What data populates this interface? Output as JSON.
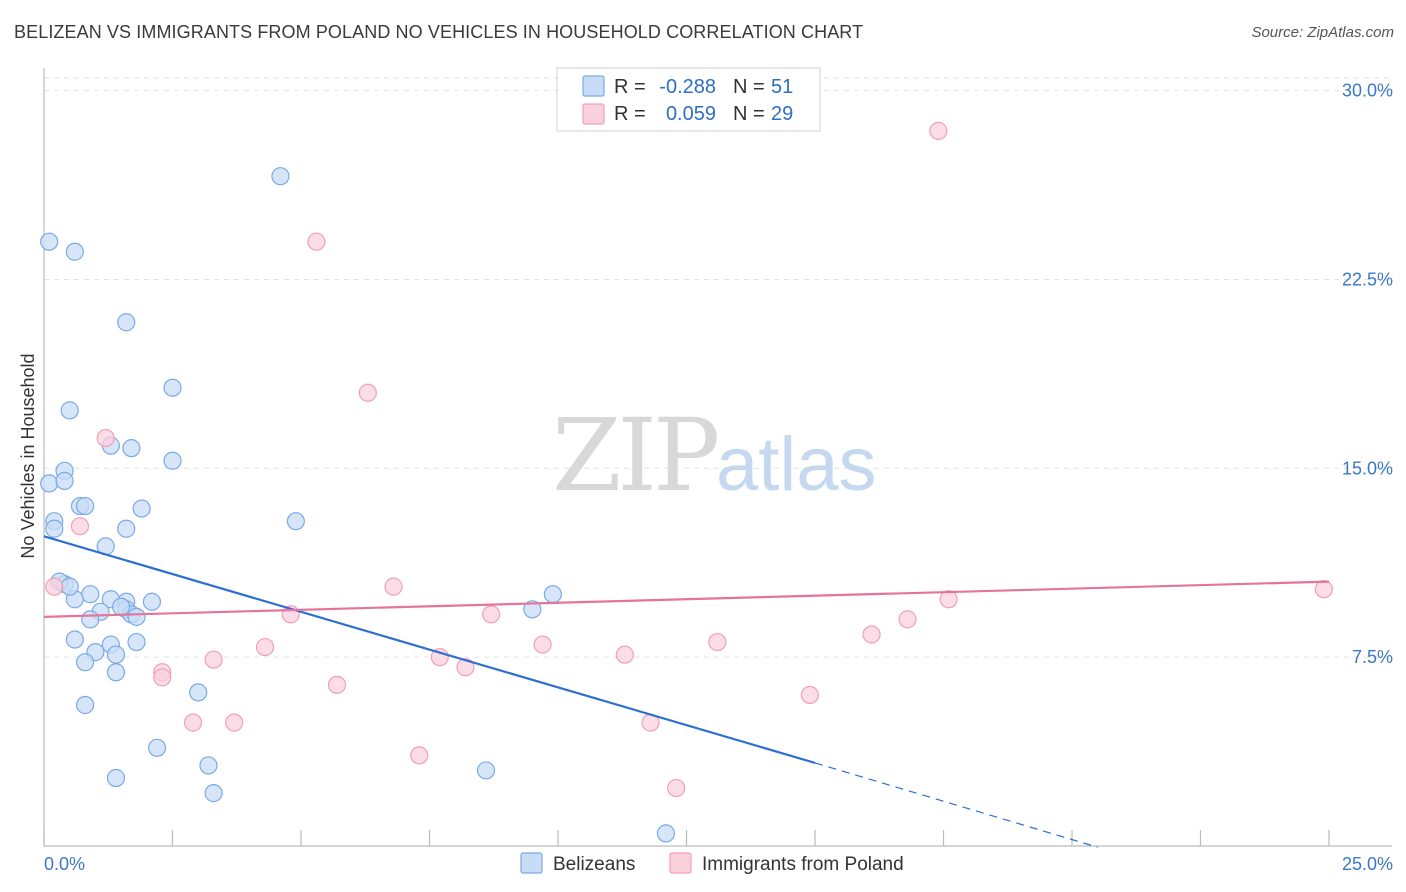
{
  "title": "BELIZEAN VS IMMIGRANTS FROM POLAND NO VEHICLES IN HOUSEHOLD CORRELATION CHART",
  "source": "Source: ZipAtlas.com",
  "watermark": {
    "zip": "ZIP",
    "atlas": "atlas"
  },
  "legend_top": {
    "rows": [
      {
        "r_label": "R =",
        "r_value": "-0.288",
        "n_label": "N =",
        "n_value": "51"
      },
      {
        "r_label": "R =",
        "r_value": "0.059",
        "n_label": "N =",
        "n_value": "29"
      }
    ]
  },
  "chart_data": {
    "type": "scatter",
    "title": "BELIZEAN VS IMMIGRANTS FROM POLAND NO VEHICLES IN HOUSEHOLD CORRELATION CHART",
    "xlabel": "",
    "ylabel": "No Vehicles in Household",
    "xlim": [
      0,
      25
    ],
    "ylim": [
      0,
      30.5
    ],
    "x_tick_labels": [
      "0.0%",
      "25.0%"
    ],
    "y_tick_values": [
      7.5,
      15.0,
      22.5,
      30.0
    ],
    "y_tick_labels": [
      "7.5%",
      "15.0%",
      "22.5%",
      "30.0%"
    ],
    "grid": true,
    "series": [
      {
        "name": "Belizeans",
        "color": "#7aaae6",
        "fill": "#c8dcf5",
        "line_color": "#2e6fd0",
        "trend": {
          "x0": 0.0,
          "y0": 12.3,
          "x1": 15.0,
          "y1": 3.3,
          "dash_to_x": 20.5,
          "dash_to_y": -0.05
        },
        "points": [
          [
            0.1,
            24.0
          ],
          [
            0.6,
            23.6
          ],
          [
            4.6,
            26.6
          ],
          [
            1.6,
            20.8
          ],
          [
            2.5,
            18.2
          ],
          [
            0.5,
            17.3
          ],
          [
            1.3,
            15.9
          ],
          [
            1.7,
            15.8
          ],
          [
            2.5,
            15.3
          ],
          [
            0.4,
            14.9
          ],
          [
            0.1,
            14.4
          ],
          [
            0.4,
            14.5
          ],
          [
            0.7,
            13.5
          ],
          [
            0.8,
            13.5
          ],
          [
            1.9,
            13.4
          ],
          [
            0.2,
            12.9
          ],
          [
            0.2,
            12.6
          ],
          [
            1.6,
            12.6
          ],
          [
            4.9,
            12.9
          ],
          [
            1.2,
            11.9
          ],
          [
            0.4,
            10.4
          ],
          [
            0.3,
            10.5
          ],
          [
            0.9,
            10.0
          ],
          [
            0.6,
            9.8
          ],
          [
            1.3,
            9.8
          ],
          [
            1.6,
            9.7
          ],
          [
            2.1,
            9.7
          ],
          [
            9.9,
            10.0
          ],
          [
            1.6,
            9.4
          ],
          [
            1.1,
            9.3
          ],
          [
            0.9,
            9.0
          ],
          [
            1.7,
            9.2
          ],
          [
            1.8,
            9.1
          ],
          [
            9.5,
            9.4
          ],
          [
            0.6,
            8.2
          ],
          [
            1.3,
            8.0
          ],
          [
            1.8,
            8.1
          ],
          [
            1.0,
            7.7
          ],
          [
            1.4,
            7.6
          ],
          [
            0.8,
            7.3
          ],
          [
            1.4,
            6.9
          ],
          [
            3.0,
            6.1
          ],
          [
            0.8,
            5.6
          ],
          [
            2.2,
            3.9
          ],
          [
            3.2,
            3.2
          ],
          [
            1.4,
            2.7
          ],
          [
            8.6,
            3.0
          ],
          [
            3.3,
            2.1
          ],
          [
            12.1,
            0.5
          ],
          [
            0.5,
            10.3
          ],
          [
            1.5,
            9.5
          ]
        ]
      },
      {
        "name": "Immigrants from Poland",
        "color": "#f0a0b8",
        "fill": "#fbd0dd",
        "line_color": "#e4749a",
        "trend": {
          "x0": 0.0,
          "y0": 9.1,
          "x1": 25.0,
          "y1": 10.5
        },
        "points": [
          [
            17.4,
            28.4
          ],
          [
            5.3,
            24.0
          ],
          [
            6.3,
            18.0
          ],
          [
            1.2,
            16.2
          ],
          [
            0.7,
            12.7
          ],
          [
            0.2,
            10.3
          ],
          [
            6.8,
            10.3
          ],
          [
            17.6,
            9.8
          ],
          [
            24.9,
            10.2
          ],
          [
            4.8,
            9.2
          ],
          [
            8.7,
            9.2
          ],
          [
            16.8,
            9.0
          ],
          [
            16.1,
            8.4
          ],
          [
            9.7,
            8.0
          ],
          [
            13.1,
            8.1
          ],
          [
            4.3,
            7.9
          ],
          [
            11.3,
            7.6
          ],
          [
            3.3,
            7.4
          ],
          [
            7.7,
            7.5
          ],
          [
            8.2,
            7.1
          ],
          [
            2.3,
            6.9
          ],
          [
            2.3,
            6.7
          ],
          [
            5.7,
            6.4
          ],
          [
            14.9,
            6.0
          ],
          [
            2.9,
            4.9
          ],
          [
            3.7,
            4.9
          ],
          [
            11.8,
            4.9
          ],
          [
            7.3,
            3.6
          ],
          [
            12.3,
            2.3
          ]
        ]
      }
    ]
  },
  "bottom_legend": {
    "items": [
      {
        "label": "Belizeans"
      },
      {
        "label": "Immigrants from Poland"
      }
    ]
  }
}
